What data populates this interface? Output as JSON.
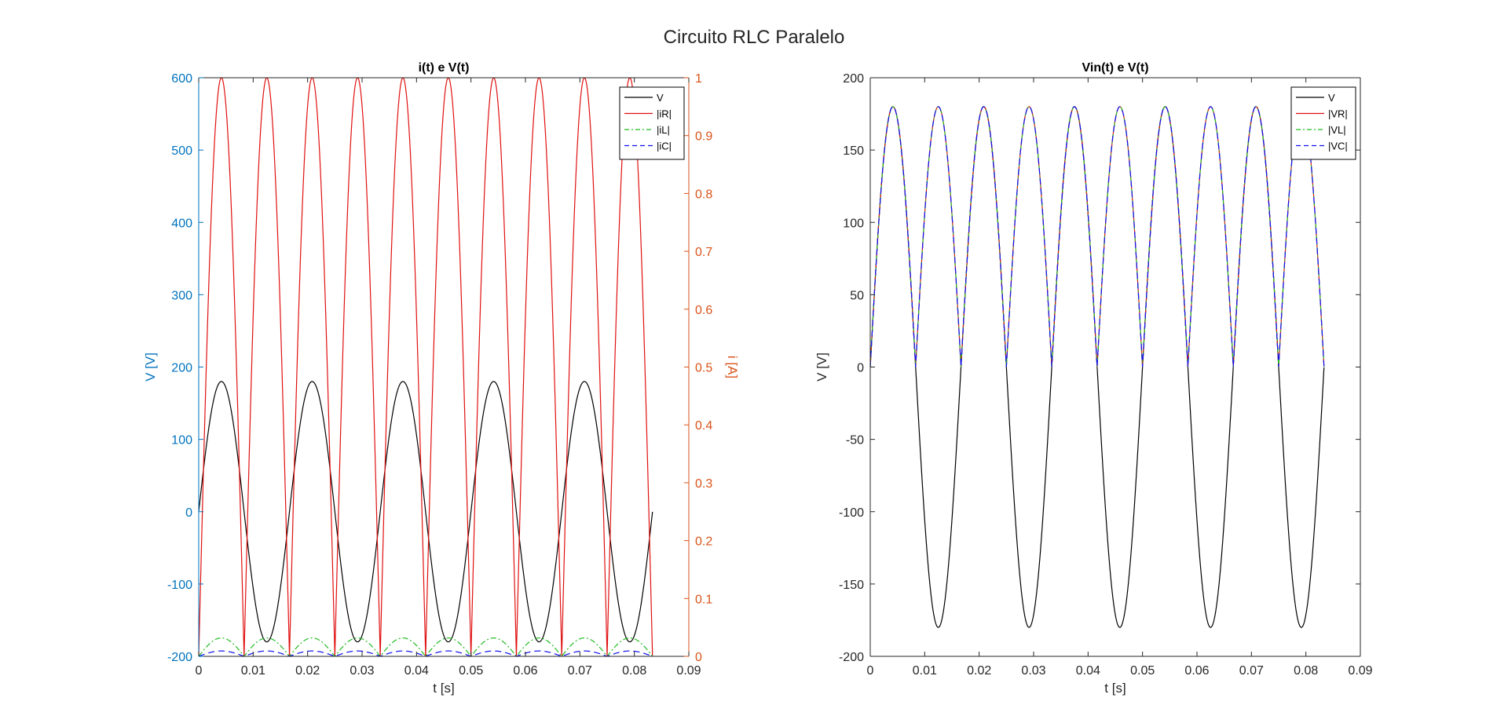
{
  "figure": {
    "title": "Circuito RLC Paralelo"
  },
  "colors": {
    "black": "#000000",
    "red": "#e01010",
    "green": "#22bb22",
    "blue": "#1010ee",
    "left_axis": "#0072bd",
    "right_axis": "#d95319",
    "axis_dark": "#262626"
  },
  "chart_data": [
    {
      "type": "line",
      "title": "i(t) e V(t)",
      "xlabel": "t [s]",
      "ylabel": "V [V]",
      "ylabel_right": "i [A]",
      "xlim": [
        0,
        0.09
      ],
      "ylim": [
        -200,
        600
      ],
      "ylim_right": [
        0,
        1
      ],
      "xticks": [
        "0",
        "0.01",
        "0.02",
        "0.03",
        "0.04",
        "0.05",
        "0.06",
        "0.07",
        "0.08",
        "0.09"
      ],
      "yticks": [
        "-200",
        "-100",
        "0",
        "100",
        "200",
        "300",
        "400",
        "500",
        "600"
      ],
      "yticks_right": [
        "0",
        "0.1",
        "0.2",
        "0.3",
        "0.4",
        "0.5",
        "0.6",
        "0.7",
        "0.8",
        "0.9",
        "1"
      ],
      "legend_position": "top-right",
      "grid": false,
      "t_range": [
        0,
        0.08333
      ],
      "frequency_hz": 60,
      "series": [
        {
          "name": "V",
          "axis": "left",
          "function": "180*sin(2*pi*60*t)",
          "amplitude": 180,
          "abs": false,
          "color": "#000000",
          "style": "solid"
        },
        {
          "name": "|iR|",
          "axis": "right",
          "function": "|1.0*sin(2*pi*60*t)|",
          "amplitude": 1.0,
          "abs": true,
          "color": "#e01010",
          "style": "solid"
        },
        {
          "name": "|iL|",
          "axis": "right",
          "function": "|0.0318*sin(2*pi*60*t)|",
          "amplitude": 0.0318,
          "abs": true,
          "color": "#22bb22",
          "style": "dashdot"
        },
        {
          "name": "|iC|",
          "axis": "right",
          "function": "|0.0093*sin(2*pi*60*t)|",
          "amplitude": 0.0093,
          "abs": true,
          "color": "#1010ee",
          "style": "dashed"
        }
      ]
    },
    {
      "type": "line",
      "title": "Vin(t) e V(t)",
      "xlabel": "t [s]",
      "ylabel": "V [V]",
      "xlim": [
        0,
        0.09
      ],
      "ylim": [
        -200,
        200
      ],
      "xticks": [
        "0",
        "0.01",
        "0.02",
        "0.03",
        "0.04",
        "0.05",
        "0.06",
        "0.07",
        "0.08",
        "0.09"
      ],
      "yticks": [
        "-200",
        "-150",
        "-100",
        "-50",
        "0",
        "50",
        "100",
        "150",
        "200"
      ],
      "legend_position": "top-right",
      "grid": false,
      "t_range": [
        0,
        0.08333
      ],
      "frequency_hz": 60,
      "series": [
        {
          "name": "V",
          "axis": "left",
          "function": "180*sin(2*pi*60*t)",
          "amplitude": 180,
          "abs": false,
          "color": "#000000",
          "style": "solid"
        },
        {
          "name": "|VR|",
          "axis": "left",
          "function": "|180*sin(2*pi*60*t)|",
          "amplitude": 180,
          "abs": true,
          "color": "#e01010",
          "style": "solid"
        },
        {
          "name": "|VL|",
          "axis": "left",
          "function": "|180*sin(2*pi*60*t)|",
          "amplitude": 180,
          "abs": true,
          "color": "#22bb22",
          "style": "dashdot"
        },
        {
          "name": "|VC|",
          "axis": "left",
          "function": "|180*sin(2*pi*60*t)|",
          "amplitude": 180,
          "abs": true,
          "color": "#1010ee",
          "style": "dashed"
        }
      ]
    }
  ]
}
